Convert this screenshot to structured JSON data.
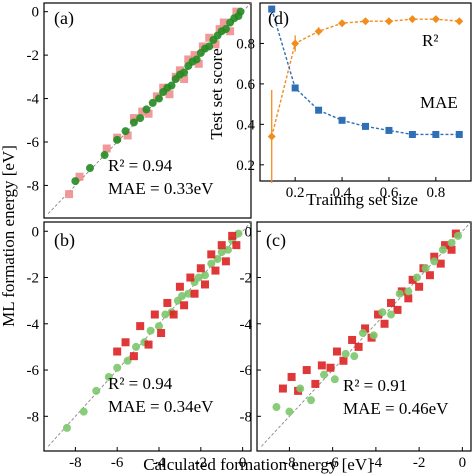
{
  "figure": {
    "ylabel": "ML formation energy [eV]",
    "xlabel": "Calculated formation energy [eV]"
  },
  "colors": {
    "train": "#228b22",
    "train_light": "#7cc66b",
    "test": "#dd2222",
    "test_light": "#f08e8e",
    "r2": "#f28c1c",
    "mae": "#2f6fb5",
    "r2_text": "#2ca02c",
    "mae_text": "#1f6ab5"
  },
  "chart_data": [
    {
      "type": "scatter",
      "panel": "(a)",
      "xlim": [
        -9.5,
        0.4
      ],
      "ylim": [
        -9.5,
        0.4
      ],
      "xticks": [],
      "yticks": [
        0,
        -2,
        -4,
        -6,
        -8
      ],
      "yticklabels": [
        "0",
        "-2",
        "-4",
        "-6",
        "-8"
      ],
      "annotations": [
        "R² = 0.94",
        "MAE = 0.33eV"
      ],
      "series": [
        {
          "role": "test",
          "color": "#f08e8e",
          "marker": "square",
          "x": [
            -8.3,
            -7.8,
            -6.5,
            -6.0,
            -5.5,
            -5.2,
            -4.8,
            -4.5,
            -4.1,
            -3.8,
            -3.5,
            -3.2,
            -3.0,
            -2.8,
            -2.6,
            -2.3,
            -2.1,
            -1.9,
            -1.6,
            -1.3,
            -1.1,
            -0.9,
            -0.6,
            -0.3
          ],
          "y": [
            -8.4,
            -7.6,
            -6.3,
            -5.8,
            -5.7,
            -4.9,
            -4.6,
            -4.7,
            -3.9,
            -3.5,
            -3.8,
            -3.0,
            -2.7,
            -3.1,
            -2.2,
            -2.0,
            -2.4,
            -1.6,
            -1.2,
            -1.5,
            -0.8,
            -0.5,
            -0.9,
            0.0
          ]
        },
        {
          "role": "train",
          "color": "#228b22",
          "marker": "circle",
          "x": [
            -8.0,
            -7.3,
            -6.6,
            -6.0,
            -5.6,
            -5.2,
            -4.9,
            -4.6,
            -4.3,
            -4.0,
            -3.8,
            -3.6,
            -3.4,
            -3.2,
            -3.0,
            -2.8,
            -2.6,
            -2.4,
            -2.2,
            -2.0,
            -1.8,
            -1.6,
            -1.4,
            -1.2,
            -1.0,
            -0.8,
            -0.6,
            -0.4,
            -0.2,
            -0.1
          ],
          "y": [
            -7.8,
            -7.2,
            -6.6,
            -5.9,
            -5.5,
            -5.1,
            -4.9,
            -4.5,
            -4.2,
            -4.0,
            -3.7,
            -3.5,
            -3.4,
            -3.1,
            -2.9,
            -2.8,
            -2.5,
            -2.3,
            -2.2,
            -1.9,
            -1.7,
            -1.6,
            -1.3,
            -1.1,
            -0.9,
            -0.8,
            -0.5,
            -0.3,
            -0.2,
            0.0
          ]
        }
      ]
    },
    {
      "type": "line",
      "panel": "(d)",
      "xlabel": "Training set size",
      "ylabel": "Test set score",
      "xlim": [
        0.05,
        0.95
      ],
      "ylim": [
        0.12,
        1.0
      ],
      "xticks": [
        0.2,
        0.4,
        0.6,
        0.8
      ],
      "yticks": [
        0.2,
        0.4,
        0.6,
        0.8
      ],
      "xticklabels": [
        "0.2",
        "0.4",
        "0.6",
        "0.8"
      ],
      "yticklabels": [
        "0.2",
        "0.4",
        "0.6",
        "0.8"
      ],
      "series": [
        {
          "name": "R²",
          "color": "#f28c1c",
          "x": [
            0.1,
            0.2,
            0.3,
            0.4,
            0.5,
            0.6,
            0.7,
            0.8,
            0.9
          ],
          "y": [
            0.34,
            0.8,
            0.86,
            0.9,
            0.91,
            0.91,
            0.92,
            0.92,
            0.91
          ],
          "err": [
            0.23,
            0.04,
            0.02,
            0.015,
            0.01,
            0.01,
            0.01,
            0.01,
            0.01
          ]
        },
        {
          "name": "MAE",
          "color": "#2f6fb5",
          "x": [
            0.1,
            0.2,
            0.3,
            0.4,
            0.5,
            0.6,
            0.7,
            0.8,
            0.9
          ],
          "y": [
            0.97,
            0.58,
            0.47,
            0.42,
            0.39,
            0.37,
            0.35,
            0.35,
            0.35
          ]
        }
      ]
    },
    {
      "type": "scatter",
      "panel": "(b)",
      "xlim": [
        -9.5,
        0.4
      ],
      "ylim": [
        -9.5,
        0.4
      ],
      "xticks": [
        -8,
        -6,
        -4,
        -2,
        0
      ],
      "yticks": [
        0,
        -2,
        -4,
        -6,
        -8
      ],
      "xticklabels": [
        "-8",
        "-6",
        "-4",
        "-2",
        "0"
      ],
      "yticklabels": [
        "0",
        "-2",
        "-4",
        "-6",
        "-8"
      ],
      "annotations": [
        "R² = 0.94",
        "MAE = 0.34eV"
      ],
      "series": [
        {
          "role": "train",
          "color": "#7cc66b",
          "marker": "circle",
          "x": [
            -8.4,
            -7.6,
            -7.0,
            -6.4,
            -6.0,
            -5.5,
            -5.1,
            -4.7,
            -4.4,
            -4.0,
            -3.7,
            -3.4,
            -3.1,
            -2.9,
            -2.6,
            -2.3,
            -2.1,
            -1.8,
            -1.5,
            -1.2,
            -1.0,
            -0.7,
            -0.5,
            -0.2
          ],
          "y": [
            -8.5,
            -7.8,
            -6.9,
            -6.3,
            -5.9,
            -5.6,
            -5.0,
            -4.8,
            -4.3,
            -4.1,
            -3.6,
            -3.5,
            -3.0,
            -2.8,
            -2.7,
            -2.2,
            -2.0,
            -1.9,
            -1.4,
            -1.2,
            -0.9,
            -0.8,
            -0.4,
            -0.1
          ]
        },
        {
          "role": "test",
          "color": "#dd2222",
          "marker": "square",
          "x": [
            -6.0,
            -5.6,
            -5.2,
            -4.9,
            -4.5,
            -4.2,
            -3.9,
            -3.6,
            -3.3,
            -3.0,
            -2.8,
            -2.5,
            -2.3,
            -2.0,
            -1.8,
            -1.5,
            -1.3,
            -1.0,
            -0.8,
            -0.5,
            -0.3
          ],
          "y": [
            -5.2,
            -4.8,
            -5.4,
            -4.1,
            -4.9,
            -3.6,
            -4.4,
            -3.1,
            -3.6,
            -2.4,
            -3.2,
            -2.0,
            -2.7,
            -1.6,
            -2.3,
            -1.0,
            -1.7,
            -0.6,
            -1.3,
            -0.2,
            -0.6
          ]
        }
      ]
    },
    {
      "type": "scatter",
      "panel": "(c)",
      "xlim": [
        -9.5,
        0.4
      ],
      "ylim": [
        -9.5,
        0.4
      ],
      "xticks": [
        -8,
        -6,
        -4,
        -2,
        0
      ],
      "yticks": [
        0,
        -2,
        -4,
        -6,
        -8
      ],
      "xticklabels": [
        "-8",
        "-6",
        "-4",
        "-2",
        "0"
      ],
      "yticklabels": [
        "0",
        "-2",
        "-4",
        "-6",
        "-8"
      ],
      "annotations": [
        "R² = 0.91",
        "MAE = 0.46eV"
      ],
      "series": [
        {
          "role": "test",
          "color": "#dd2222",
          "marker": "square",
          "x": [
            -8.3,
            -7.9,
            -7.6,
            -7.2,
            -6.8,
            -6.5,
            -6.1,
            -5.8,
            -5.5,
            -5.1,
            -4.8,
            -4.5,
            -4.2,
            -3.9,
            -3.6,
            -3.3,
            -3.0,
            -2.8,
            -2.5,
            -2.3,
            -2.0,
            -1.8,
            -1.5,
            -1.3,
            -1.0,
            -0.8,
            -0.5,
            -0.3
          ],
          "y": [
            -6.8,
            -6.3,
            -6.9,
            -6.0,
            -6.6,
            -5.8,
            -5.9,
            -5.2,
            -5.6,
            -4.7,
            -5.0,
            -4.2,
            -4.6,
            -3.6,
            -4.0,
            -3.1,
            -3.4,
            -2.6,
            -2.9,
            -2.1,
            -2.4,
            -1.6,
            -1.9,
            -1.1,
            -1.4,
            -0.6,
            -0.8,
            -0.1
          ]
        },
        {
          "role": "train",
          "color": "#7cc66b",
          "marker": "circle",
          "x": [
            -8.6,
            -8.0,
            -7.5,
            -7.0,
            -6.4,
            -5.9,
            -5.4,
            -5.0,
            -4.6,
            -4.1,
            -3.7,
            -3.3,
            -2.9,
            -2.5,
            -2.1,
            -1.7,
            -1.3,
            -0.9,
            -0.5,
            -0.2
          ],
          "y": [
            -7.6,
            -7.8,
            -6.8,
            -7.3,
            -6.2,
            -6.4,
            -5.3,
            -5.4,
            -4.4,
            -4.5,
            -3.5,
            -3.6,
            -2.7,
            -2.6,
            -2.0,
            -1.6,
            -1.3,
            -0.8,
            -0.5,
            -0.2
          ]
        }
      ]
    }
  ]
}
